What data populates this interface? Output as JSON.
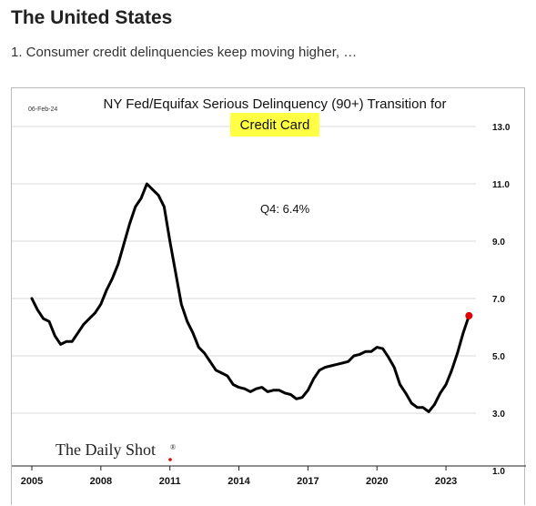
{
  "page": {
    "heading": "The United States",
    "subtitle": "1. Consumer credit delinquencies keep moving higher, …"
  },
  "chart_data": {
    "type": "line",
    "date_stamp": "06-Feb-24",
    "title_line1": "NY Fed/Equifax Serious Delinquency (90+) Transition for",
    "title_line2": "Credit Card",
    "annotation": "Q4:   6.4%",
    "watermark": "The Daily Shot",
    "watermark_mark": "®",
    "xlabel": "",
    "ylabel": "",
    "x_ticks": [
      "2005",
      "2008",
      "2011",
      "2014",
      "2017",
      "2020",
      "2023"
    ],
    "y_ticks": [
      "1.0",
      "3.0",
      "5.0",
      "7.0",
      "9.0",
      "11.0",
      "13.0"
    ],
    "xlim": [
      2005,
      2024.5
    ],
    "ylim": [
      1,
      13
    ],
    "grid": true,
    "line_color": "#000000",
    "marker_color": "#e00000",
    "highlight_color": "#ffff44",
    "series": [
      {
        "x": [
          2005.0,
          2005.25,
          2005.5,
          2005.75,
          2006.0,
          2006.25,
          2006.5,
          2006.75,
          2007.0,
          2007.25,
          2007.5,
          2007.75,
          2008.0,
          2008.25,
          2008.5,
          2008.75,
          2009.0,
          2009.25,
          2009.5,
          2009.75,
          2010.0,
          2010.25,
          2010.5,
          2010.75,
          2011.0,
          2011.25,
          2011.5,
          2011.75,
          2012.0,
          2012.25,
          2012.5,
          2012.75,
          2013.0,
          2013.25,
          2013.5,
          2013.75,
          2014.0,
          2014.25,
          2014.5,
          2014.75,
          2015.0,
          2015.25,
          2015.5,
          2015.75,
          2016.0,
          2016.25,
          2016.5,
          2016.75,
          2017.0,
          2017.25,
          2017.5,
          2017.75,
          2018.0,
          2018.25,
          2018.5,
          2018.75,
          2019.0,
          2019.25,
          2019.5,
          2019.75,
          2020.0,
          2020.25,
          2020.5,
          2020.75,
          2021.0,
          2021.25,
          2021.5,
          2021.75,
          2022.0,
          2022.25,
          2022.5,
          2022.75,
          2023.0,
          2023.25,
          2023.5,
          2023.75
        ],
        "y": [
          7.0,
          6.6,
          6.3,
          6.2,
          5.7,
          5.4,
          5.5,
          5.5,
          5.8,
          6.1,
          6.3,
          6.5,
          6.8,
          7.3,
          7.7,
          8.2,
          8.9,
          9.6,
          10.2,
          10.5,
          11.0,
          10.8,
          10.6,
          10.2,
          9.0,
          7.9,
          6.8,
          6.2,
          5.8,
          5.3,
          5.1,
          4.8,
          4.5,
          4.4,
          4.3,
          4.0,
          3.9,
          3.85,
          3.75,
          3.85,
          3.9,
          3.75,
          3.8,
          3.8,
          3.7,
          3.65,
          3.5,
          3.55,
          3.8,
          4.2,
          4.5,
          4.6,
          4.65,
          4.7,
          4.75,
          4.8,
          5.0,
          5.05,
          5.15,
          5.15,
          5.3,
          5.25,
          4.95,
          4.6,
          4.0,
          3.7,
          3.35,
          3.2,
          3.2,
          3.05,
          3.3,
          3.7,
          4.0,
          4.5,
          5.1,
          5.8
        ]
      }
    ],
    "last_point": {
      "x": 2024.0,
      "y": 6.4
    }
  }
}
